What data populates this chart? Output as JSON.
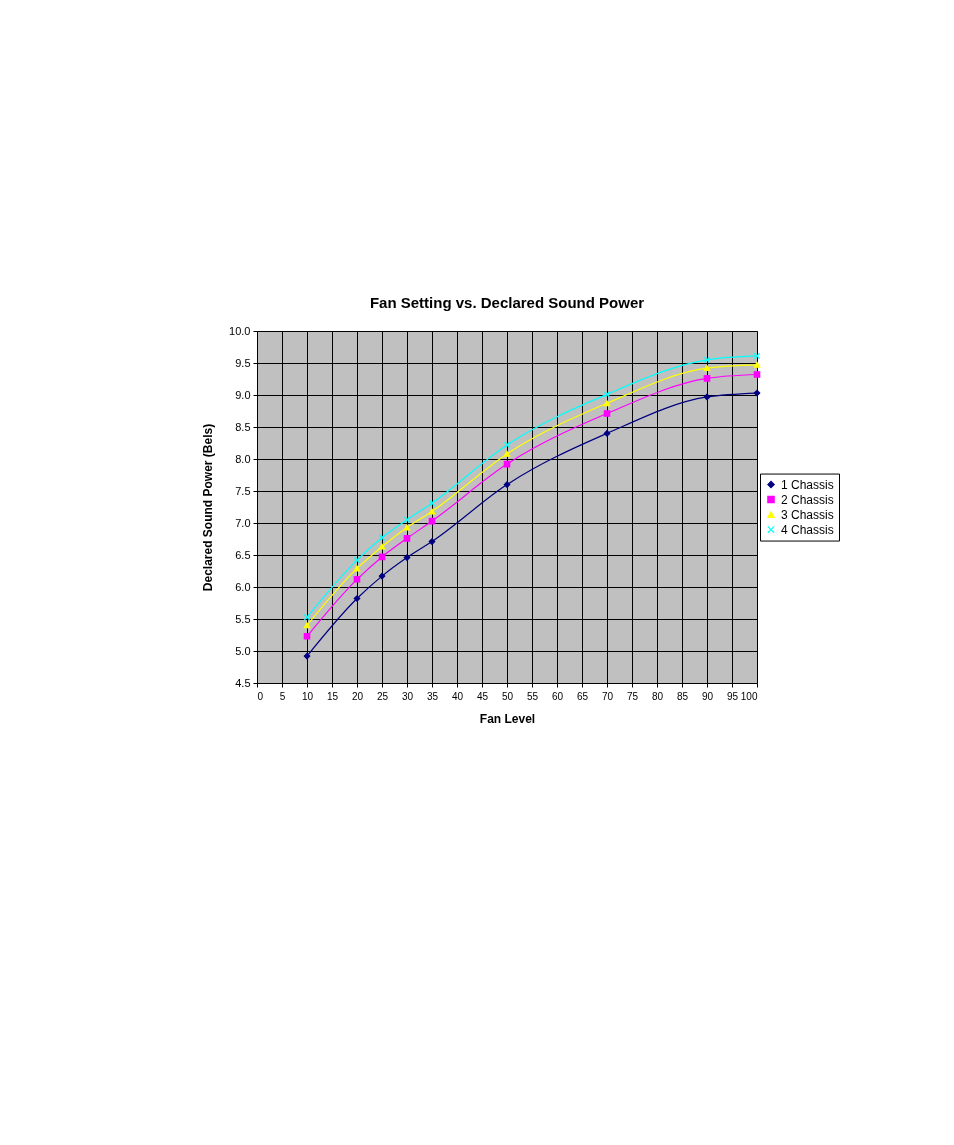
{
  "chart_data": {
    "type": "line",
    "title": "Fan Setting vs. Declared Sound Power",
    "xlabel": "Fan Level",
    "ylabel": "Declared Sound Power (Bels)",
    "x": [
      10,
      20,
      25,
      30,
      35,
      50,
      70,
      90,
      100
    ],
    "series": [
      {
        "name": "1 Chassis",
        "color": "#000080",
        "marker": "diamond",
        "values": [
          4.92,
          5.82,
          6.17,
          6.46,
          6.71,
          7.6,
          8.4,
          8.97,
          9.03
        ]
      },
      {
        "name": "2 Chassis",
        "color": "#ff00ff",
        "marker": "square",
        "values": [
          5.23,
          6.12,
          6.47,
          6.76,
          7.03,
          7.92,
          8.71,
          9.26,
          9.32
        ]
      },
      {
        "name": "3 Chassis",
        "color": "#ffff00",
        "marker": "triangle",
        "values": [
          5.4,
          6.29,
          6.63,
          6.93,
          7.18,
          8.08,
          8.87,
          9.42,
          9.47
        ]
      },
      {
        "name": "4 Chassis",
        "color": "#00ffff",
        "marker": "cross",
        "values": [
          5.53,
          6.42,
          6.77,
          7.05,
          7.31,
          8.22,
          9.01,
          9.55,
          9.61
        ]
      }
    ],
    "xlim": [
      0,
      100
    ],
    "xticks": [
      0,
      5,
      10,
      15,
      20,
      25,
      30,
      35,
      40,
      45,
      50,
      55,
      60,
      65,
      70,
      75,
      80,
      85,
      90,
      95,
      100
    ],
    "ylim": [
      4.5,
      10
    ],
    "yticks": [
      4.5,
      {
        "value": 5,
        "label": "5.0"
      },
      5.5,
      {
        "value": 6,
        "label": "6.0"
      },
      6.5,
      {
        "value": 7,
        "label": "7.0"
      },
      7.5,
      {
        "value": 8,
        "label": "8.0"
      },
      8.5,
      {
        "value": 9,
        "label": "9.0"
      },
      9.5,
      {
        "value": 10,
        "label": "10.0"
      }
    ],
    "grid": true,
    "legend": "right"
  }
}
